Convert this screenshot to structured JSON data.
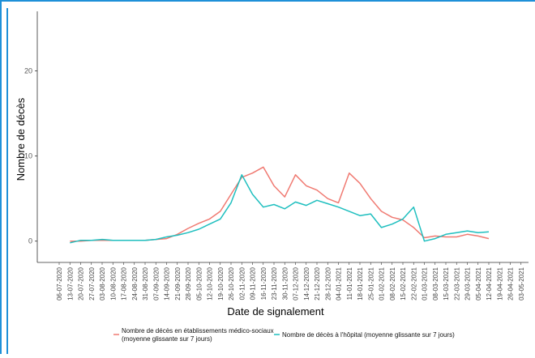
{
  "colors": {
    "hospital": "#1fbfbf",
    "ehpad": "#f07a72",
    "axis": "#333333",
    "frame": "#1e90d8"
  },
  "chart_data": {
    "type": "line",
    "xlabel": "Date de signalement",
    "ylabel": "Nombre de décès",
    "ylim": [
      -2.5,
      27
    ],
    "yticks": [
      0,
      10,
      20
    ],
    "ytick_labels": [
      "0",
      "10",
      "20"
    ],
    "grid": false,
    "legend_position": "bottom",
    "x_dates": [
      "06-07-2020",
      "13-07-2020",
      "20-07-2020",
      "27-07-2020",
      "03-08-2020",
      "10-08-2020",
      "17-08-2020",
      "24-08-2020",
      "31-08-2020",
      "07-09-2020",
      "14-09-2020",
      "21-09-2020",
      "28-09-2020",
      "05-10-2020",
      "12-10-2020",
      "19-10-2020",
      "26-10-2020",
      "02-11-2020",
      "09-11-2020",
      "16-11-2020",
      "23-11-2020",
      "30-11-2020",
      "07-12-2020",
      "14-12-2020",
      "21-12-2020",
      "28-12-2020",
      "04-01-2021",
      "11-01-2021",
      "18-01-2021",
      "25-01-2021",
      "01-02-2021",
      "08-02-2021",
      "15-02-2021",
      "22-02-2021",
      "01-03-2021",
      "08-03-2021",
      "15-03-2021",
      "22-03-2021",
      "29-03-2021",
      "05-04-2021",
      "12-04-2021",
      "19-04-2021",
      "26-04-2021",
      "03-05-2021"
    ],
    "series": [
      {
        "name": "Nombre de décès en établissements médico-sociaux (moyenne glissante sur 7 jours)",
        "color": "#f07a72",
        "values": [
          null,
          0,
          0,
          0.1,
          0.1,
          0.1,
          0.1,
          0.1,
          0.1,
          0.2,
          0.3,
          0.8,
          1.5,
          2.1,
          2.6,
          3.5,
          5.5,
          7.5,
          8.0,
          8.7,
          6.5,
          5.2,
          7.8,
          6.5,
          6.0,
          5.0,
          4.5,
          8.0,
          6.8,
          5.0,
          3.5,
          2.8,
          2.5,
          1.6,
          0.4,
          0.6,
          0.5,
          0.5,
          0.8,
          0.6,
          0.3,
          null,
          null,
          null
        ]
      },
      {
        "name": "Nombre de décès à l'hôpital (moyenne glissante sur 7 jours)",
        "color": "#1fbfbf",
        "values": [
          null,
          -0.2,
          0.1,
          0.1,
          0.2,
          0.1,
          0.1,
          0.1,
          0.1,
          0.2,
          0.5,
          0.7,
          1.0,
          1.4,
          2.0,
          2.6,
          4.5,
          7.8,
          5.5,
          4.0,
          4.3,
          3.8,
          4.6,
          4.2,
          4.8,
          4.4,
          4.0,
          3.5,
          3.0,
          3.2,
          1.6,
          2.0,
          2.6,
          4.0,
          0,
          0.3,
          0.8,
          1.0,
          1.2,
          1.0,
          1.1,
          null,
          null,
          null
        ]
      }
    ]
  }
}
